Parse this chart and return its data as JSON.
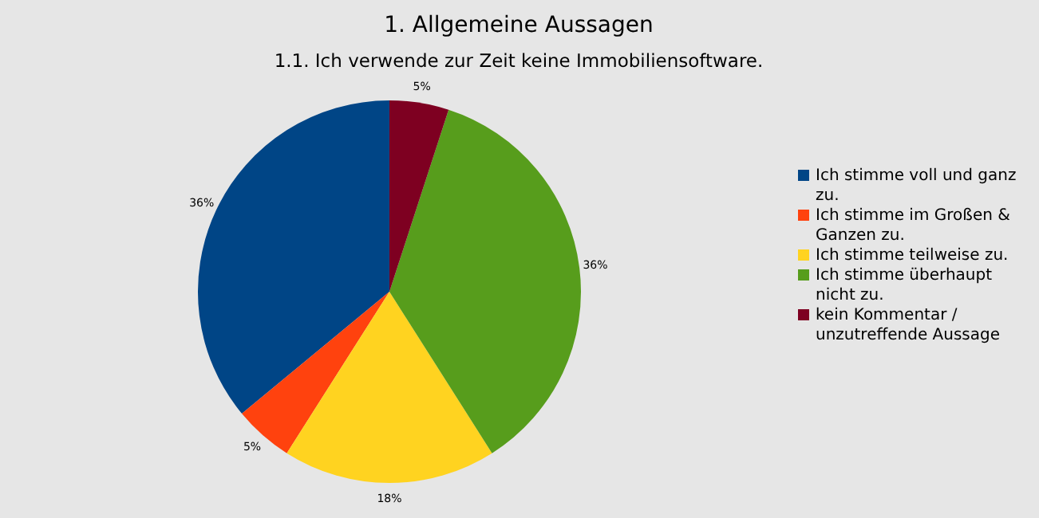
{
  "chart_data": {
    "type": "pie",
    "title": "1. Allgemeine Aussagen",
    "subtitle": "1.1. Ich verwende zur Zeit keine Immobiliensoftware.",
    "categories": [
      "Ich stimme voll und ganz zu.",
      "Ich stimme im Großen & Ganzen zu.",
      "Ich stimme teilweise zu.",
      "Ich stimme überhaupt nicht zu.",
      "kein Kommentar / unzutreffende Aussage"
    ],
    "values": [
      36,
      5,
      18,
      36,
      5
    ],
    "value_labels": [
      "36%",
      "5%",
      "18%",
      "36%",
      "5%"
    ],
    "colors": [
      "#004586",
      "#ff420e",
      "#ffd320",
      "#579d1c",
      "#7e0021"
    ],
    "legend": "right"
  }
}
